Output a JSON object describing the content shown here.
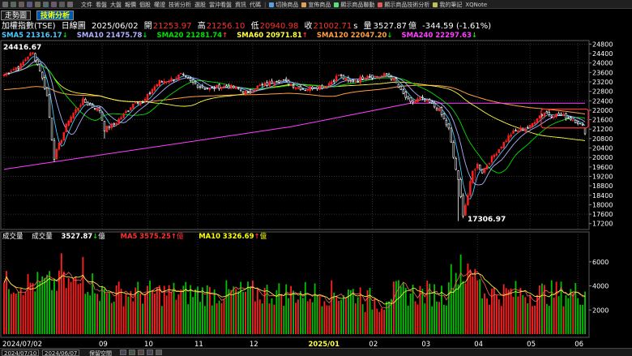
{
  "menu": {
    "items": [
      "文件",
      "看盤",
      "大盤",
      "報價",
      "個股",
      "權證",
      "技術分析",
      "選股",
      "當沖看盤",
      "資訊",
      "代碼"
    ],
    "right_items": [
      "切換商品",
      "宣佈商品",
      "顯示商品聯動",
      "顯示商品技術分析",
      "我的筆記",
      "XQNote"
    ]
  },
  "tabs": {
    "tab1": "走勢圖",
    "tab2": "技術分析"
  },
  "header": {
    "symbol": "加權指數(TSE)",
    "period": "日線圖",
    "date": "2025/06/02",
    "open_label": "開",
    "open": "21253.97",
    "high_label": "高",
    "high": "21256.10",
    "low_label": "低",
    "low": "20940.98",
    "close_label": "收",
    "close": "21002.71",
    "close_flag": "s",
    "vol_label": "量",
    "volume": "3527.87",
    "vol_unit": "億",
    "change": "-344.59 (-1.61%)"
  },
  "sma": [
    {
      "label": "SMA5",
      "value": "21316.17",
      "arrow": "↓",
      "color": "#4dc8ff",
      "arrow_color": "#00e000"
    },
    {
      "label": "SMA10",
      "value": "21475.78",
      "arrow": "↓",
      "color": "#b0b0ff",
      "arrow_color": "#00e000"
    },
    {
      "label": "SMA20",
      "value": "21281.74",
      "arrow": "↑",
      "color": "#00e000",
      "arrow_color": "#ff3030"
    },
    {
      "label": "SMA60",
      "value": "20971.81",
      "arrow": "↑",
      "color": "#ffff40",
      "arrow_color": "#ff3030"
    },
    {
      "label": "SMA120",
      "value": "22047.20",
      "arrow": "↓",
      "color": "#ffa040",
      "arrow_color": "#00e000"
    },
    {
      "label": "SMA240",
      "value": "22297.63",
      "arrow": "↓",
      "color": "#ff40ff",
      "arrow_color": "#00e000"
    }
  ],
  "annotations": {
    "high_value": "24416.67",
    "low_value": "17306.97"
  },
  "volume_panel": {
    "title": "成交量",
    "vol_label": "成交量",
    "vol_value": "3527.87",
    "vol_arrow": "↓",
    "vol_unit": "億",
    "ma5_label": "MA5",
    "ma5_value": "3575.25",
    "ma5_arrow": "↑",
    "ma5_unit": "億",
    "ma10_label": "MA10",
    "ma10_value": "3326.69",
    "ma10_arrow": "↑",
    "ma10_unit": "億"
  },
  "status": {
    "field1": "2024/07/10",
    "field2": "2024/06/07",
    "label": "保留空間"
  },
  "chart_data": {
    "type": "candlestick",
    "price_axis_ticks": [
      24800,
      24400,
      24000,
      23600,
      23200,
      22800,
      22400,
      22000,
      21600,
      21200,
      20800,
      20400,
      20000,
      19600,
      19200,
      18800,
      18400,
      18000,
      17600,
      17200
    ],
    "price_ylim": [
      16950,
      24950
    ],
    "volume_axis_ticks": [
      6000,
      4000,
      2000
    ],
    "volume_ylim": [
      0,
      7600
    ],
    "x_labels": [
      "2024/07/02",
      "09",
      "10",
      "11",
      "12",
      "2025/01",
      "02",
      "03",
      "04",
      "05",
      "06"
    ],
    "x_label_bar_index": [
      0,
      41,
      60,
      81,
      104,
      132,
      154,
      176,
      198,
      220,
      240
    ],
    "highlight_box_bars": [
      226,
      243
    ],
    "price_path_anchors": [
      [
        0,
        23500
      ],
      [
        3,
        23700
      ],
      [
        7,
        23900
      ],
      [
        10,
        24300
      ],
      [
        12,
        24416.67
      ],
      [
        15,
        23700
      ],
      [
        18,
        22600
      ],
      [
        20,
        20800
      ],
      [
        21,
        20000
      ],
      [
        24,
        20800
      ],
      [
        27,
        21600
      ],
      [
        30,
        22000
      ],
      [
        33,
        22400
      ],
      [
        36,
        22200
      ],
      [
        40,
        22000
      ],
      [
        42,
        21200
      ],
      [
        46,
        21400
      ],
      [
        50,
        21800
      ],
      [
        55,
        22400
      ],
      [
        58,
        22300
      ],
      [
        62,
        22900
      ],
      [
        65,
        23200
      ],
      [
        70,
        23300
      ],
      [
        74,
        23500
      ],
      [
        78,
        23200
      ],
      [
        82,
        23000
      ],
      [
        86,
        22900
      ],
      [
        90,
        23000
      ],
      [
        94,
        23000
      ],
      [
        98,
        22900
      ],
      [
        102,
        22700
      ],
      [
        106,
        23000
      ],
      [
        110,
        23100
      ],
      [
        114,
        23300
      ],
      [
        118,
        23200
      ],
      [
        122,
        23000
      ],
      [
        126,
        22900
      ],
      [
        130,
        23000
      ],
      [
        134,
        23000
      ],
      [
        138,
        23300
      ],
      [
        140,
        23500
      ],
      [
        144,
        23200
      ],
      [
        148,
        23300
      ],
      [
        152,
        23500
      ],
      [
        156,
        23400
      ],
      [
        160,
        23500
      ],
      [
        163,
        23300
      ],
      [
        166,
        22800
      ],
      [
        170,
        22300
      ],
      [
        174,
        22500
      ],
      [
        178,
        22300
      ],
      [
        182,
        22000
      ],
      [
        186,
        21200
      ],
      [
        188,
        20000
      ],
      [
        190,
        19000
      ],
      [
        192,
        17600
      ],
      [
        194,
        18400
      ],
      [
        196,
        19400
      ],
      [
        198,
        19700
      ],
      [
        200,
        19400
      ],
      [
        202,
        19700
      ],
      [
        205,
        20100
      ],
      [
        208,
        20500
      ],
      [
        212,
        21000
      ],
      [
        216,
        21200
      ],
      [
        220,
        21300
      ],
      [
        223,
        21700
      ],
      [
        226,
        21900
      ],
      [
        229,
        21800
      ],
      [
        232,
        21800
      ],
      [
        236,
        21700
      ],
      [
        240,
        21500
      ],
      [
        242,
        21300
      ],
      [
        243,
        21002.71
      ]
    ],
    "events": [
      [
        21,
        19800
      ],
      [
        42,
        20800
      ],
      [
        190,
        17306.97
      ],
      [
        197,
        19000
      ]
    ],
    "sma240_anchor": [
      [
        0,
        19500
      ],
      [
        60,
        20400
      ],
      [
        120,
        21300
      ],
      [
        170,
        22300
      ],
      [
        243,
        22297.63
      ]
    ]
  }
}
